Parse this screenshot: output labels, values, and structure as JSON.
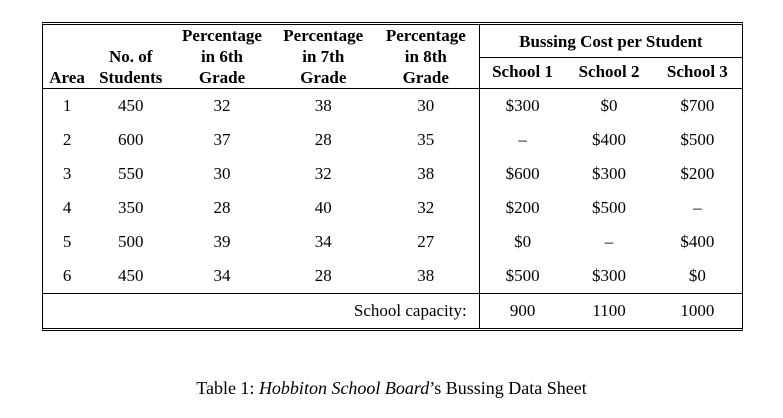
{
  "table": {
    "group_header": "Bussing Cost per Student",
    "headers": {
      "area": "Area",
      "students_line1": "No. of",
      "students_line2": "Students",
      "g6_line1": "Percentage",
      "g6_line2": "in 6th",
      "g6_line3": "Grade",
      "g7_line1": "Percentage",
      "g7_line2": "in 7th",
      "g7_line3": "Grade",
      "g8_line1": "Percentage",
      "g8_line2": "in 8th",
      "g8_line3": "Grade",
      "school1": "School 1",
      "school2": "School 2",
      "school3": "School 3"
    },
    "rows": [
      {
        "area": "1",
        "students": "450",
        "g6": "32",
        "g7": "38",
        "g8": "30",
        "s1": "$300",
        "s2": "$0",
        "s3": "$700"
      },
      {
        "area": "2",
        "students": "600",
        "g6": "37",
        "g7": "28",
        "g8": "35",
        "s1": "–",
        "s2": "$400",
        "s3": "$500"
      },
      {
        "area": "3",
        "students": "550",
        "g6": "30",
        "g7": "32",
        "g8": "38",
        "s1": "$600",
        "s2": "$300",
        "s3": "$200"
      },
      {
        "area": "4",
        "students": "350",
        "g6": "28",
        "g7": "40",
        "g8": "32",
        "s1": "$200",
        "s2": "$500",
        "s3": "–"
      },
      {
        "area": "5",
        "students": "500",
        "g6": "39",
        "g7": "34",
        "g8": "27",
        "s1": "$0",
        "s2": "–",
        "s3": "$400"
      },
      {
        "area": "6",
        "students": "450",
        "g6": "34",
        "g7": "28",
        "g8": "38",
        "s1": "$500",
        "s2": "$300",
        "s3": "$0"
      }
    ],
    "capacity": {
      "label": "School capacity:",
      "s1": "900",
      "s2": "1100",
      "s3": "1000"
    }
  },
  "caption": {
    "prefix": "Table 1: ",
    "italic": "Hobbiton School Board",
    "suffix": "’s Bussing Data Sheet"
  }
}
